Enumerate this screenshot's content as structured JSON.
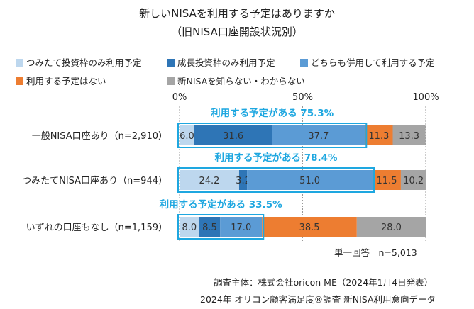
{
  "header": {
    "title": "新しいNISAを利用する予定はありますか",
    "subtitle": "（旧NISA口座開設状況別）"
  },
  "legend": {
    "items": [
      {
        "label": "つみたて投資枠のみ利用予定",
        "color": "#bdd7ee"
      },
      {
        "label": "成長投資枠のみ利用予定",
        "color": "#2e75b6"
      },
      {
        "label": "どちらも併用して利用する予定",
        "color": "#5b9bd5"
      },
      {
        "label": "利用する予定はない",
        "color": "#ed7d31"
      },
      {
        "label": "新NISAを知らない・わからない",
        "color": "#a5a5a5"
      }
    ]
  },
  "chart_data": {
    "type": "bar",
    "orientation": "horizontal",
    "stacked": true,
    "xlim": [
      0,
      100
    ],
    "x_ticks": [
      "0%",
      "50%",
      "100%"
    ],
    "categories": [
      "一般NISA口座あり（n=2,910）",
      "つみたてNISA口座あり（n=944）",
      "いずれの口座もなし（n=1,159）"
    ],
    "series": [
      {
        "name": "つみたて投資枠のみ利用予定",
        "color": "#bdd7ee",
        "values": [
          6.0,
          24.2,
          8.0
        ],
        "labels": [
          "6.0",
          "24.2",
          "8.0"
        ]
      },
      {
        "name": "成長投資枠のみ利用予定",
        "color": "#2e75b6",
        "values": [
          31.6,
          3.2,
          8.5
        ],
        "labels": [
          "31.6",
          "3.2",
          "8.5"
        ]
      },
      {
        "name": "どちらも併用して利用する予定",
        "color": "#5b9bd5",
        "values": [
          37.7,
          51.0,
          17.0
        ],
        "labels": [
          "37.7",
          "51.0",
          "17.0"
        ]
      },
      {
        "name": "利用する予定はない",
        "color": "#ed7d31",
        "values": [
          11.3,
          11.5,
          38.5
        ],
        "labels": [
          "11.3",
          "11.5",
          "38.5"
        ]
      },
      {
        "name": "新NISAを知らない・わからない",
        "color": "#a5a5a5",
        "values": [
          13.3,
          10.2,
          28.0
        ],
        "labels": [
          "13.3",
          "10.2",
          "28.0"
        ]
      }
    ],
    "annotations": [
      {
        "text": "利用する予定がある 75.3%",
        "value": 75.3
      },
      {
        "text": "利用する予定がある 78.4%",
        "value": 78.4
      },
      {
        "text": "利用する予定がある 33.5%",
        "value": 33.5
      }
    ],
    "annotation_color": "#1ea7e0",
    "grid": false,
    "legend_position": "top"
  },
  "footer": {
    "answer_type": "単一回答　n=5,013",
    "survey_by": "調査主体：株式会社oricon ME（2024年1月4日発表）",
    "source": "2024年 オリコン顧客満足度®調査 新NISA利用意向データ"
  }
}
